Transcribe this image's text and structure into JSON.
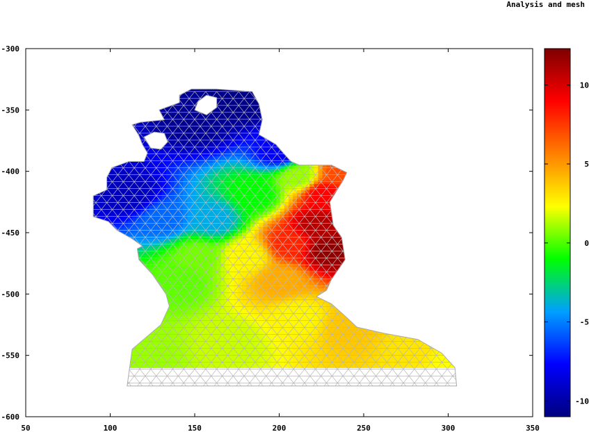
{
  "chart_data": {
    "type": "heatmap",
    "title": "Analysis and mesh",
    "xlabel": "",
    "ylabel": "",
    "xlim": [
      50,
      350
    ],
    "ylim": [
      -600,
      -300
    ],
    "xticks": [
      50,
      100,
      150,
      200,
      250,
      300,
      350
    ],
    "yticks": [
      -300,
      -350,
      -400,
      -450,
      -500,
      -550,
      -600
    ],
    "colorbar": {
      "range": [
        -11,
        12.3
      ],
      "ticks": [
        10,
        5,
        0,
        -5,
        -10
      ],
      "colormap": [
        "#00007f",
        "#0000ff",
        "#00a0ff",
        "#00ff00",
        "#ffff00",
        "#ff8000",
        "#ff0000",
        "#7f0000"
      ]
    },
    "field_description": "values from about -10 in the northwest to about +12 in the east, with near-zero yellow values in the south",
    "domain_outline": [
      [
        110,
        -575
      ],
      [
        113,
        -545
      ],
      [
        130,
        -525
      ],
      [
        135,
        -510
      ],
      [
        133,
        -500
      ],
      [
        128,
        -490
      ],
      [
        125,
        -484
      ],
      [
        117,
        -472
      ],
      [
        116,
        -463
      ],
      [
        119,
        -461
      ],
      [
        113,
        -455
      ],
      [
        104,
        -448
      ],
      [
        99,
        -441
      ],
      [
        90,
        -437
      ],
      [
        90,
        -420
      ],
      [
        98,
        -415
      ],
      [
        98,
        -405
      ],
      [
        101,
        -397
      ],
      [
        111,
        -392
      ],
      [
        120,
        -392
      ],
      [
        122,
        -385
      ],
      [
        119,
        -378
      ],
      [
        117,
        -371
      ],
      [
        113,
        -362
      ],
      [
        118,
        -360
      ],
      [
        132,
        -358
      ],
      [
        129,
        -350
      ],
      [
        141,
        -344
      ],
      [
        141,
        -338
      ],
      [
        148,
        -333
      ],
      [
        163,
        -333
      ],
      [
        184,
        -335
      ],
      [
        188,
        -345
      ],
      [
        190,
        -358
      ],
      [
        188,
        -370
      ],
      [
        198,
        -378
      ],
      [
        203,
        -386
      ],
      [
        207,
        -392
      ],
      [
        212,
        -395
      ],
      [
        231,
        -395
      ],
      [
        240,
        -401
      ],
      [
        238,
        -407
      ],
      [
        230,
        -425
      ],
      [
        232,
        -444
      ],
      [
        237,
        -454
      ],
      [
        239,
        -472
      ],
      [
        231,
        -488
      ],
      [
        228,
        -497
      ],
      [
        222,
        -502
      ],
      [
        231,
        -508
      ],
      [
        239,
        -518
      ],
      [
        246,
        -527
      ],
      [
        262,
        -532
      ],
      [
        282,
        -537
      ],
      [
        296,
        -548
      ],
      [
        304,
        -560
      ],
      [
        305,
        -575
      ]
    ],
    "holes": [
      [
        [
          150,
          -350
        ],
        [
          152,
          -343
        ],
        [
          157,
          -338
        ],
        [
          163,
          -340
        ],
        [
          163,
          -348
        ],
        [
          157,
          -354
        ]
      ],
      [
        [
          120,
          -372
        ],
        [
          126,
          -368
        ],
        [
          132,
          -369
        ],
        [
          134,
          -376
        ],
        [
          130,
          -382
        ],
        [
          124,
          -381
        ]
      ]
    ],
    "value_anchors": [
      {
        "x": 150,
        "y": -360,
        "v": -10.5
      },
      {
        "x": 175,
        "y": -345,
        "v": -10.8
      },
      {
        "x": 110,
        "y": -420,
        "v": -9.5
      },
      {
        "x": 200,
        "y": -385,
        "v": -8
      },
      {
        "x": 130,
        "y": -440,
        "v": -5.5
      },
      {
        "x": 160,
        "y": -440,
        "v": -4
      },
      {
        "x": 185,
        "y": -420,
        "v": -1
      },
      {
        "x": 210,
        "y": -405,
        "v": 1
      },
      {
        "x": 235,
        "y": -402,
        "v": 7
      },
      {
        "x": 225,
        "y": -420,
        "v": 9
      },
      {
        "x": 222,
        "y": -445,
        "v": 11
      },
      {
        "x": 228,
        "y": -465,
        "v": 12
      },
      {
        "x": 205,
        "y": -460,
        "v": 8
      },
      {
        "x": 200,
        "y": -490,
        "v": 4.5
      },
      {
        "x": 180,
        "y": -470,
        "v": 2.5
      },
      {
        "x": 140,
        "y": -490,
        "v": 0.2
      },
      {
        "x": 150,
        "y": -470,
        "v": 0.5
      },
      {
        "x": 120,
        "y": -548,
        "v": 1
      },
      {
        "x": 170,
        "y": -540,
        "v": 1.6
      },
      {
        "x": 210,
        "y": -520,
        "v": 2.5
      },
      {
        "x": 240,
        "y": -528,
        "v": 3.8
      },
      {
        "x": 280,
        "y": -545,
        "v": 3
      },
      {
        "x": 300,
        "y": -555,
        "v": 2.3
      }
    ]
  }
}
